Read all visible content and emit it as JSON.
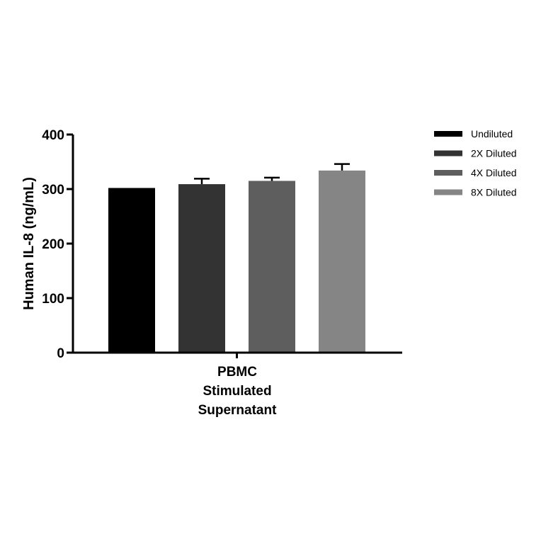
{
  "chart_data": {
    "type": "bar",
    "title": "",
    "ylabel": "Human IL-8 (ng/mL)",
    "xlabel": "",
    "ylim": [
      0,
      400
    ],
    "yticks": [
      0,
      100,
      200,
      300,
      400
    ],
    "category_lines": [
      "PBMC",
      "Stimulated",
      "Supernatant"
    ],
    "series": [
      {
        "name": "Undiluted",
        "value": 302,
        "error": 0,
        "color": "#000000"
      },
      {
        "name": "2X Diluted",
        "value": 309,
        "error": 10,
        "color": "#333333"
      },
      {
        "name": "4X Diluted",
        "value": 315,
        "error": 6,
        "color": "#5e5e5e"
      },
      {
        "name": "8X Diluted",
        "value": 334,
        "error": 12,
        "color": "#858585"
      }
    ],
    "legend_position": "right"
  }
}
